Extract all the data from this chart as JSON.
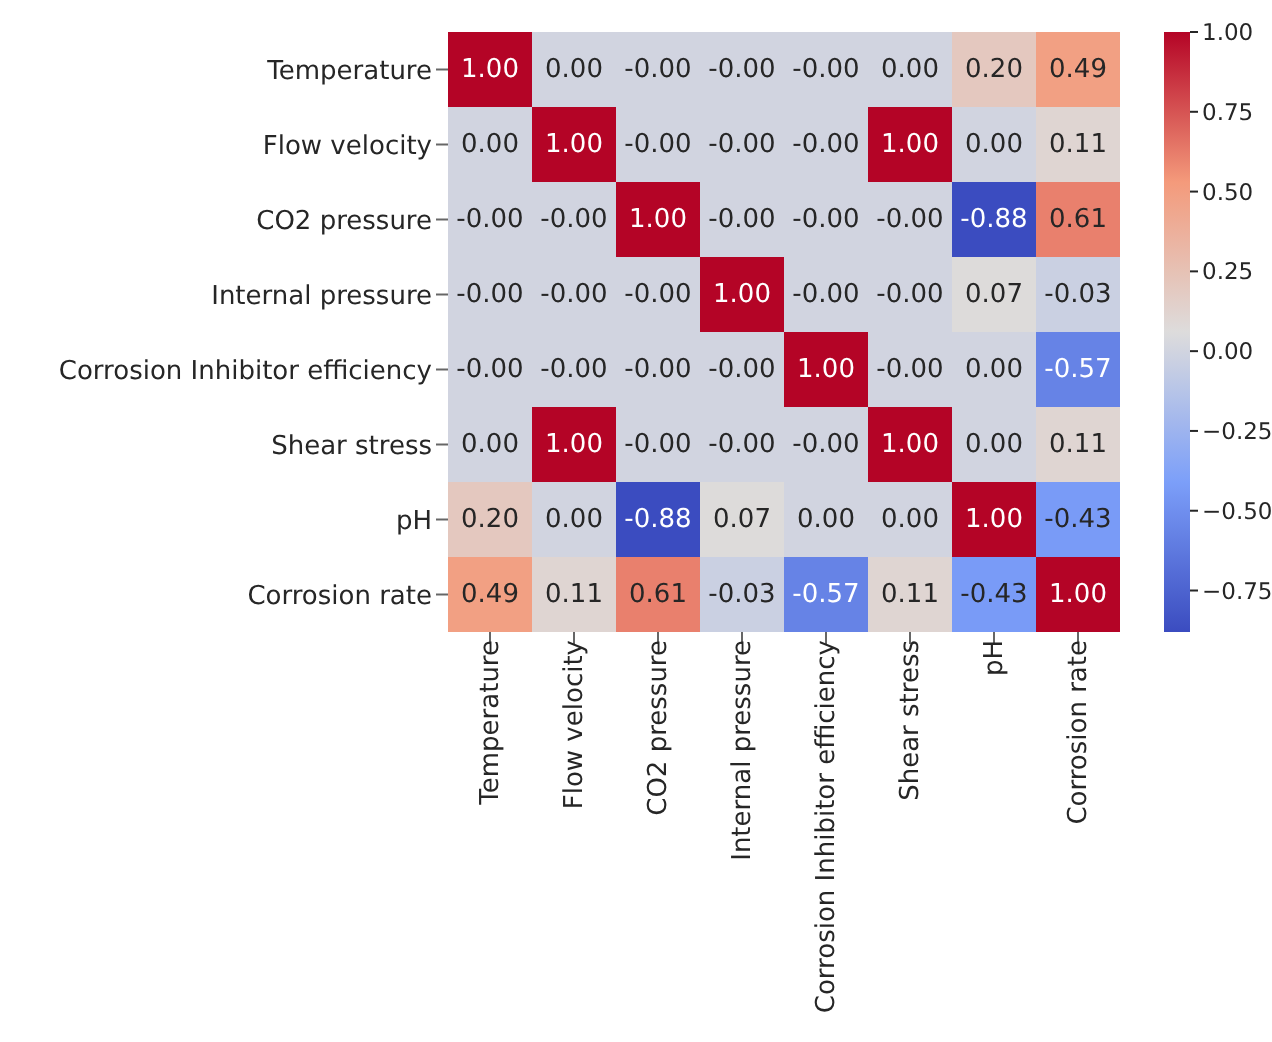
{
  "chart_data": {
    "type": "heatmap",
    "categories": [
      "Temperature",
      "Flow velocity",
      "CO2 pressure",
      "Internal pressure",
      "Corrosion Inhibitor efficiency",
      "Shear stress",
      "pH",
      "Corrosion rate"
    ],
    "y_categories": [
      "Temperature",
      "Flow velocity",
      "CO2 pressure",
      "Internal pressure",
      "Corrosion Inhibitor efficiency",
      "Shear stress",
      "pH",
      "Corrosion rate"
    ],
    "cells": [
      [
        1.0,
        0.0,
        0.0,
        0.0,
        0.0,
        0.0,
        0.2,
        0.49
      ],
      [
        0.0,
        1.0,
        0.0,
        0.0,
        0.0,
        1.0,
        0.0,
        0.11
      ],
      [
        0.0,
        0.0,
        1.0,
        0.0,
        0.0,
        0.0,
        -0.88,
        0.61
      ],
      [
        0.0,
        0.0,
        0.0,
        1.0,
        0.0,
        0.0,
        0.07,
        -0.03
      ],
      [
        0.0,
        0.0,
        0.0,
        0.0,
        1.0,
        0.0,
        0.0,
        -0.57
      ],
      [
        0.0,
        1.0,
        0.0,
        0.0,
        0.0,
        1.0,
        0.0,
        0.11
      ],
      [
        0.2,
        0.0,
        -0.88,
        0.07,
        0.0,
        0.0,
        1.0,
        -0.43
      ],
      [
        0.49,
        0.11,
        0.61,
        -0.03,
        -0.57,
        0.11,
        -0.43,
        1.0
      ]
    ],
    "cell_labels": [
      [
        "1.00",
        "0.00",
        "-0.00",
        "-0.00",
        "-0.00",
        "0.00",
        "0.20",
        "0.49"
      ],
      [
        "0.00",
        "1.00",
        "-0.00",
        "-0.00",
        "-0.00",
        "1.00",
        "0.00",
        "0.11"
      ],
      [
        "-0.00",
        "-0.00",
        "1.00",
        "-0.00",
        "-0.00",
        "-0.00",
        "-0.88",
        "0.61"
      ],
      [
        "-0.00",
        "-0.00",
        "-0.00",
        "1.00",
        "-0.00",
        "-0.00",
        "0.07",
        "-0.03"
      ],
      [
        "-0.00",
        "-0.00",
        "-0.00",
        "-0.00",
        "1.00",
        "-0.00",
        "0.00",
        "-0.57"
      ],
      [
        "0.00",
        "1.00",
        "-0.00",
        "-0.00",
        "-0.00",
        "1.00",
        "0.00",
        "0.11"
      ],
      [
        "0.20",
        "0.00",
        "-0.88",
        "0.07",
        "0.00",
        "0.00",
        "1.00",
        "-0.43"
      ],
      [
        "0.49",
        "0.11",
        "0.61",
        "-0.03",
        "-0.57",
        "0.11",
        "-0.43",
        "1.00"
      ]
    ],
    "clim": [
      -0.88,
      1.0
    ],
    "cticks": [
      {
        "value": -0.75,
        "label": "−0.75"
      },
      {
        "value": -0.5,
        "label": "−0.50"
      },
      {
        "value": -0.25,
        "label": "−0.25"
      },
      {
        "value": 0,
        "label": "0.00"
      },
      {
        "value": 0.25,
        "label": "0.25"
      },
      {
        "value": 0.5,
        "label": "0.50"
      },
      {
        "value": 0.75,
        "label": "0.75"
      },
      {
        "value": 1,
        "label": "1.00"
      }
    ]
  }
}
